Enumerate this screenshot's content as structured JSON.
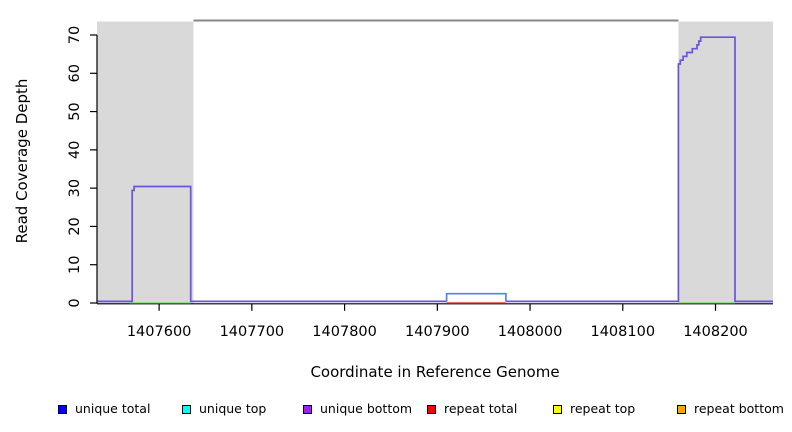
{
  "figure": {
    "xlabel": "Coordinate in Reference Genome",
    "ylabel": "Read Coverage Depth"
  },
  "chart_data": {
    "type": "line",
    "subtype": "step-coverage-plot",
    "title": "",
    "xlabel": "Coordinate in Reference Genome",
    "ylabel": "Read Coverage Depth",
    "xlim": [
      1407533,
      1408262
    ],
    "ylim": [
      0,
      70
    ],
    "grid": false,
    "legend_position": "bottom",
    "x_ticks": [
      1407600,
      1407700,
      1407800,
      1407900,
      1408000,
      1408100,
      1408200
    ],
    "y_ticks": [
      0,
      10,
      20,
      30,
      40,
      50,
      60,
      70
    ],
    "shaded_color": "#D9D9D9",
    "shaded_regions": [
      {
        "x1": 1407533,
        "x2": 1407637
      },
      {
        "x1": 1408160,
        "x2": 1408262
      }
    ],
    "gap_top_line": {
      "x1": 1407637,
      "x2": 1408160,
      "color": "#878787"
    },
    "traces": [
      {
        "name": "unique bottom coverage (main purple trace)",
        "color": "#6B53DE",
        "segments": [
          [
            [
              1407533,
              0
            ],
            [
              1407571,
              0
            ],
            [
              1407571,
              29
            ],
            [
              1407573,
              29
            ],
            [
              1407573,
              30
            ],
            [
              1407634,
              30
            ],
            [
              1407634,
              0
            ],
            [
              1407910,
              0
            ]
          ],
          [
            [
              1407974,
              0
            ],
            [
              1408160,
              0
            ],
            [
              1408160,
              62
            ],
            [
              1408162,
              62
            ],
            [
              1408162,
              63
            ],
            [
              1408165,
              63
            ],
            [
              1408165,
              64
            ],
            [
              1408169,
              64
            ],
            [
              1408169,
              65
            ],
            [
              1408175,
              65
            ],
            [
              1408175,
              66
            ],
            [
              1408180,
              66
            ],
            [
              1408180,
              67
            ],
            [
              1408182,
              67
            ],
            [
              1408182,
              68
            ],
            [
              1408184,
              68
            ],
            [
              1408184,
              69
            ],
            [
              1408221,
              69
            ],
            [
              1408221,
              0
            ],
            [
              1408262,
              0
            ]
          ]
        ]
      },
      {
        "name": "unique total coverage (blue bump)",
        "color": "#4A86E8",
        "segments": [
          [
            [
              1407910,
              0
            ],
            [
              1407910,
              2
            ],
            [
              1407974,
              2
            ],
            [
              1407974,
              0
            ]
          ]
        ]
      }
    ],
    "baseline_marks": [
      {
        "name": "unique/repeat top baseline",
        "color": "#97DF8F",
        "x1": 1407568,
        "x2": 1407634
      },
      {
        "name": "unique/repeat top baseline",
        "color": "#97DF8F",
        "x1": 1408160,
        "x2": 1408221
      },
      {
        "name": "repeat total baseline",
        "color": "#E57373",
        "x1": 1407910,
        "x2": 1407974
      }
    ],
    "legend": [
      {
        "label": "unique total",
        "color": "#0000FF"
      },
      {
        "label": "unique top",
        "color": "#00FFFF"
      },
      {
        "label": "unique bottom",
        "color": "#A020F0"
      },
      {
        "label": "repeat total",
        "color": "#FF0000"
      },
      {
        "label": "repeat top",
        "color": "#FFFF00"
      },
      {
        "label": "repeat bottom",
        "color": "#FFA500"
      }
    ]
  }
}
